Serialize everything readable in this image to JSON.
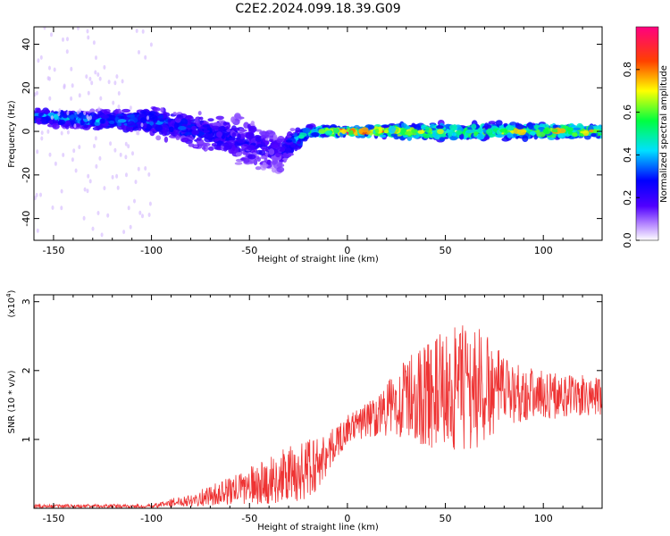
{
  "title": "C2E2.2024.099.18.39.G09",
  "chart_data": [
    {
      "type": "heatmap",
      "xlabel": "Height of straight line (km)",
      "ylabel": "Frequency (Hz)",
      "xlim": [
        -160,
        130
      ],
      "ylim": [
        -50,
        48
      ],
      "xticks": [
        -150,
        -100,
        -50,
        0,
        50,
        100
      ],
      "yticks": [
        -40,
        -20,
        0,
        20,
        40
      ],
      "colorbar": {
        "label": "Normalized spectral amplitude",
        "range": [
          0,
          1
        ],
        "ticks": [
          "0.0",
          "0.2",
          "0.4",
          "0.6",
          "0.8"
        ],
        "tick_values": [
          0,
          0.2,
          0.4,
          0.6,
          0.8
        ],
        "colors": [
          "#ffffff",
          "#b080ff",
          "#5000ff",
          "#0000ff",
          "#00e0ff",
          "#00ff40",
          "#ffff00",
          "#ff4000",
          "#ff0080"
        ]
      },
      "trend": [
        {
          "x": -160,
          "center_hz": 7,
          "spread_hz": 4,
          "amplitude": 0.45
        },
        {
          "x": -130,
          "center_hz": 5,
          "spread_hz": 5,
          "amplitude": 0.4
        },
        {
          "x": -100,
          "center_hz": 5,
          "spread_hz": 8,
          "amplitude": 0.35
        },
        {
          "x": -75,
          "center_hz": 0,
          "spread_hz": 10,
          "amplitude": 0.3
        },
        {
          "x": -50,
          "center_hz": -5,
          "spread_hz": 14,
          "amplitude": 0.25
        },
        {
          "x": -35,
          "center_hz": -10,
          "spread_hz": 12,
          "amplitude": 0.2
        },
        {
          "x": -20,
          "center_hz": 0,
          "spread_hz": 3,
          "amplitude": 0.55
        },
        {
          "x": 0,
          "center_hz": 0,
          "spread_hz": 2,
          "amplitude": 0.9
        },
        {
          "x": 30,
          "center_hz": 0,
          "spread_hz": 4,
          "amplitude": 0.7
        },
        {
          "x": 60,
          "center_hz": 0,
          "spread_hz": 5,
          "amplitude": 0.6
        },
        {
          "x": 100,
          "center_hz": 0,
          "spread_hz": 4,
          "amplitude": 0.7
        },
        {
          "x": 130,
          "center_hz": 0,
          "spread_hz": 3,
          "amplitude": 0.8
        }
      ]
    },
    {
      "type": "line",
      "xlabel": "Height of straight line (km)",
      "ylabel": "SNR (10 * v/v)",
      "yscale_label": "(x10",
      "yscale_exp": "4",
      "xlim": [
        -160,
        130
      ],
      "ylim": [
        0,
        3.1
      ],
      "xticks": [
        -150,
        -100,
        -50,
        0,
        50,
        100
      ],
      "yticks": [
        1,
        2,
        3
      ],
      "color": "#ee3333",
      "envelope": [
        {
          "x": -160,
          "mean": 0.03,
          "amp": 0.03
        },
        {
          "x": -100,
          "mean": 0.03,
          "amp": 0.03
        },
        {
          "x": -90,
          "mean": 0.08,
          "amp": 0.06
        },
        {
          "x": -75,
          "mean": 0.15,
          "amp": 0.12
        },
        {
          "x": -60,
          "mean": 0.25,
          "amp": 0.2
        },
        {
          "x": -40,
          "mean": 0.4,
          "amp": 0.35
        },
        {
          "x": -20,
          "mean": 0.55,
          "amp": 0.5
        },
        {
          "x": -10,
          "mean": 0.8,
          "amp": 0.3
        },
        {
          "x": 0,
          "mean": 1.15,
          "amp": 0.2
        },
        {
          "x": 15,
          "mean": 1.35,
          "amp": 0.3
        },
        {
          "x": 30,
          "mean": 1.6,
          "amp": 0.6
        },
        {
          "x": 50,
          "mean": 1.7,
          "amp": 0.9
        },
        {
          "x": 65,
          "mean": 1.75,
          "amp": 1.0
        },
        {
          "x": 80,
          "mean": 1.7,
          "amp": 0.5
        },
        {
          "x": 100,
          "mean": 1.65,
          "amp": 0.35
        },
        {
          "x": 130,
          "mean": 1.6,
          "amp": 0.3
        }
      ]
    }
  ]
}
